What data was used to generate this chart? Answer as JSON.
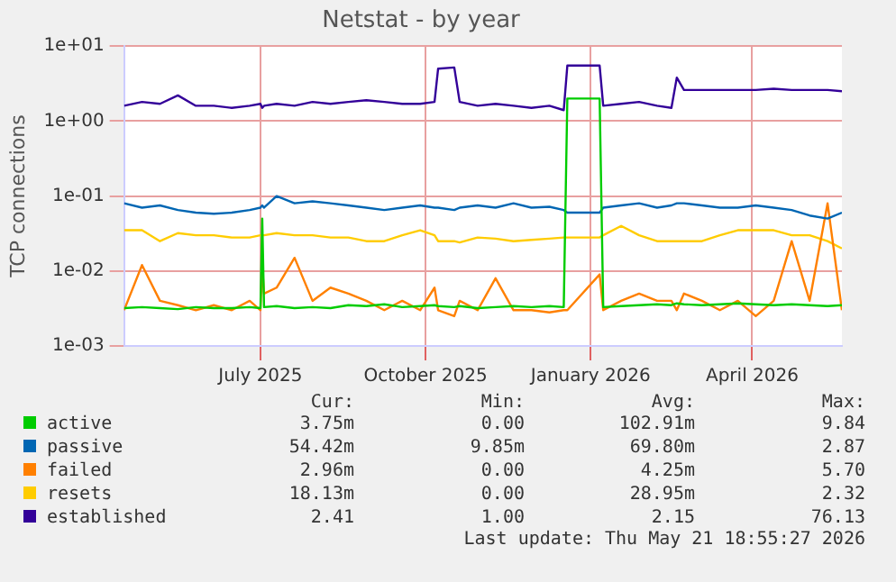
{
  "chart_data": {
    "type": "line",
    "title": "Netstat - by year",
    "ylabel": "TCP connections",
    "log": "y",
    "grid": true,
    "legend": "bottom",
    "marker": "none",
    "line_style": "solid",
    "x": [
      "2025-04-16",
      "2025-04-26",
      "2025-05-06",
      "2025-05-16",
      "2025-05-26",
      "2025-06-05",
      "2025-06-15",
      "2025-06-25",
      "2025-07-01",
      "2025-07-02",
      "2025-07-03",
      "2025-07-10",
      "2025-07-20",
      "2025-07-30",
      "2025-08-09",
      "2025-08-19",
      "2025-08-29",
      "2025-09-08",
      "2025-09-18",
      "2025-09-28",
      "2025-10-06",
      "2025-10-08",
      "2025-10-17",
      "2025-10-20",
      "2025-10-30",
      "2025-11-09",
      "2025-11-19",
      "2025-11-29",
      "2025-12-09",
      "2025-12-17",
      "2025-12-19",
      "2026-01-06",
      "2026-01-08",
      "2026-01-18",
      "2026-01-28",
      "2026-02-07",
      "2026-02-15",
      "2026-02-18",
      "2026-02-22",
      "2026-03-04",
      "2026-03-14",
      "2026-03-24",
      "2026-04-03",
      "2026-04-13",
      "2026-04-23",
      "2026-05-03",
      "2026-05-13",
      "2026-05-21"
    ],
    "xlim": [
      "2025-04-16",
      "2026-05-21"
    ],
    "xticks": [
      {
        "value": "2025-07-01",
        "label": "July 2025"
      },
      {
        "value": "2025-10-01",
        "label": "October 2025"
      },
      {
        "value": "2026-01-01",
        "label": "January 2026"
      },
      {
        "value": "2026-04-01",
        "label": "April 2026"
      }
    ],
    "ylim": [
      0.001,
      10
    ],
    "yticks": [
      {
        "value": 0.001,
        "label": "1e-03"
      },
      {
        "value": 0.01,
        "label": "1e-02"
      },
      {
        "value": 0.1,
        "label": "1e-01"
      },
      {
        "value": 1,
        "label": "1e+00"
      },
      {
        "value": 10,
        "label": "1e+01"
      }
    ],
    "series": [
      {
        "name": "active",
        "color": "#00cc00",
        "values": [
          0.0032,
          0.0033,
          0.0032,
          0.0031,
          0.0033,
          0.0032,
          0.0032,
          0.0033,
          0.0032,
          0.05,
          0.0033,
          0.0034,
          0.0032,
          0.0033,
          0.0032,
          0.0035,
          0.0034,
          0.0036,
          0.0033,
          0.0034,
          0.0035,
          0.0034,
          0.0033,
          0.0034,
          0.0032,
          0.0033,
          0.0034,
          0.0033,
          0.0034,
          0.0033,
          2.0,
          2.0,
          0.0033,
          0.0034,
          0.0035,
          0.0036,
          0.0035,
          0.0037,
          0.0036,
          0.0035,
          0.0036,
          0.0037,
          0.0036,
          0.0035,
          0.0036,
          0.0035,
          0.0034,
          0.0035
        ]
      },
      {
        "name": "passive",
        "color": "#0066b3",
        "values": [
          0.08,
          0.07,
          0.075,
          0.065,
          0.06,
          0.058,
          0.06,
          0.065,
          0.07,
          0.075,
          0.07,
          0.1,
          0.08,
          0.085,
          0.08,
          0.075,
          0.07,
          0.065,
          0.07,
          0.075,
          0.07,
          0.07,
          0.065,
          0.07,
          0.075,
          0.07,
          0.08,
          0.07,
          0.072,
          0.065,
          0.06,
          0.06,
          0.07,
          0.075,
          0.08,
          0.07,
          0.075,
          0.08,
          0.08,
          0.075,
          0.07,
          0.07,
          0.075,
          0.07,
          0.065,
          0.055,
          0.05,
          0.06
        ]
      },
      {
        "name": "failed",
        "color": "#ff8000",
        "values": [
          0.003,
          0.012,
          0.004,
          0.0035,
          0.003,
          0.0035,
          0.003,
          0.004,
          0.003,
          0.012,
          0.005,
          0.006,
          0.015,
          0.004,
          0.006,
          0.005,
          0.004,
          0.003,
          0.004,
          0.003,
          0.006,
          0.003,
          0.0025,
          0.004,
          0.003,
          0.008,
          0.003,
          0.003,
          0.0028,
          0.003,
          0.003,
          0.009,
          0.003,
          0.004,
          0.005,
          0.004,
          0.004,
          0.003,
          0.005,
          0.004,
          0.003,
          0.004,
          0.0025,
          0.004,
          0.025,
          0.004,
          0.08,
          0.003
        ]
      },
      {
        "name": "resets",
        "color": "#ffcc00",
        "values": [
          0.035,
          0.035,
          0.025,
          0.032,
          0.03,
          0.03,
          0.028,
          0.028,
          0.03,
          0.03,
          0.03,
          0.032,
          0.03,
          0.03,
          0.028,
          0.028,
          0.025,
          0.025,
          0.03,
          0.035,
          0.03,
          0.025,
          0.025,
          0.024,
          0.028,
          0.027,
          0.025,
          0.026,
          0.027,
          0.028,
          0.028,
          0.028,
          0.03,
          0.04,
          0.03,
          0.025,
          0.025,
          0.025,
          0.025,
          0.025,
          0.03,
          0.035,
          0.035,
          0.035,
          0.03,
          0.03,
          0.025,
          0.02
        ]
      },
      {
        "name": "established",
        "color": "#330099",
        "values": [
          1.6,
          1.8,
          1.7,
          2.2,
          1.6,
          1.6,
          1.5,
          1.6,
          1.7,
          1.5,
          1.6,
          1.7,
          1.6,
          1.8,
          1.7,
          1.8,
          1.9,
          1.8,
          1.7,
          1.7,
          1.8,
          5.0,
          5.2,
          1.8,
          1.6,
          1.7,
          1.6,
          1.5,
          1.6,
          1.4,
          5.5,
          5.5,
          1.6,
          1.7,
          1.8,
          1.6,
          1.5,
          3.8,
          2.6,
          2.6,
          2.6,
          2.6,
          2.6,
          2.7,
          2.6,
          2.6,
          2.6,
          2.5
        ]
      }
    ],
    "annotations": [
      "Cur:",
      "Min:",
      "Avg:",
      "Max:",
      "3.75m",
      "0.00",
      "102.91m",
      "9.84",
      "54.42m",
      "9.85m",
      "69.80m",
      "2.87",
      "2.96m",
      "0.00",
      "4.25m",
      "5.70",
      "18.13m",
      "0.00",
      "28.95m",
      "2.32",
      "2.41",
      "1.00",
      "2.15",
      "76.13",
      "Last update: Thu May 21 18:55:27 2026"
    ]
  }
}
